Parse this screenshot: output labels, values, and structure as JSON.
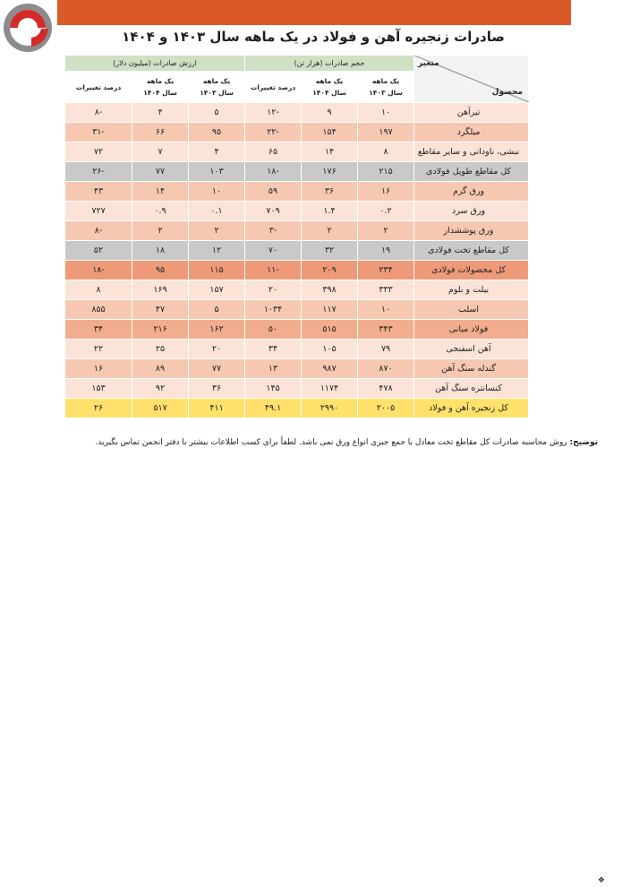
{
  "title": "صادرات زنجیره آهن و فولاد در یک ماهه سال ۱۴۰۳ و ۱۴۰۴",
  "table": {
    "corner_top": "متغیر",
    "corner_bottom": "محصول",
    "group_volume": "حجم صادرات (هزار تن)",
    "group_value": "ارزش صادرات (میلیون دلار)",
    "col_1403": "یک ماهه\nسال ۱۴۰۳",
    "col_1404": "یک ماهه\nسال ۱۴۰۴",
    "col_change": "درصد تغییرات",
    "rows": [
      {
        "name": "تیرآهن",
        "v1403": "۱۰",
        "v1404": "۹",
        "vch": "-۱۲",
        "d1403": "۵",
        "d1404": "۴",
        "dch": "-۸",
        "style": "r-light"
      },
      {
        "name": "میلگرد",
        "v1403": "۱۹۷",
        "v1404": "۱۵۴",
        "vch": "-۲۲",
        "d1403": "۹۵",
        "d1404": "۶۶",
        "dch": "-۳۱",
        "style": "r-mid"
      },
      {
        "name": "نبشی، ناودانی و سایر مقاطع",
        "v1403": "۸",
        "v1404": "۱۴",
        "vch": "۶۵",
        "d1403": "۴",
        "d1404": "۷",
        "dch": "۷۲",
        "style": "r-light"
      },
      {
        "name": "کل مقاطع طویل فولادی",
        "v1403": "۲۱۵",
        "v1404": "۱۷۶",
        "vch": "-۱۸",
        "d1403": "۱۰۳",
        "d1404": "۷۷",
        "dch": "-۲۶",
        "style": "r-gray"
      },
      {
        "name": "ورق گرم",
        "v1403": "۱۶",
        "v1404": "۳۶",
        "vch": "۵۹",
        "d1403": "۱۰",
        "d1404": "۱۴",
        "dch": "۴۳",
        "style": "r-mid"
      },
      {
        "name": "ورق سرد",
        "v1403": "۰.۲",
        "v1404": "۱.۴",
        "vch": "۷۰۹",
        "d1403": "۰.۱",
        "d1404": "۰.۹",
        "dch": "۷۲۷",
        "style": "r-light"
      },
      {
        "name": "ورق پوششدار",
        "v1403": "۲",
        "v1404": "۲",
        "vch": "-۳",
        "d1403": "۲",
        "d1404": "۲",
        "dch": "-۸",
        "style": "r-mid"
      },
      {
        "name": "کل مقاطع تخت فولادی",
        "v1403": "۱۹",
        "v1404": "۳۲",
        "vch": "۷۰",
        "d1403": "۱۲",
        "d1404": "۱۸",
        "dch": "۵۲",
        "style": "r-gray"
      },
      {
        "name": "کل محصولات فولادی",
        "v1403": "۲۳۴",
        "v1404": "۲۰۹",
        "vch": "-۱۱",
        "d1403": "۱۱۵",
        "d1404": "۹۵",
        "dch": "-۱۸",
        "style": "r-orange"
      },
      {
        "name": "بیلت و بلوم",
        "v1403": "۳۳۳",
        "v1404": "۳۹۸",
        "vch": "۲۰",
        "d1403": "۱۵۷",
        "d1404": "۱۶۹",
        "dch": "۸",
        "style": "r-light"
      },
      {
        "name": "اسلب",
        "v1403": "۱۰",
        "v1404": "۱۱۷",
        "vch": "۱۰۳۴",
        "d1403": "۵",
        "d1404": "۴۷",
        "dch": "۸۵۵",
        "style": "r-mid"
      },
      {
        "name": "فولاد میانی",
        "v1403": "۳۴۳",
        "v1404": "۵۱۵",
        "vch": "۵۰",
        "d1403": "۱۶۲",
        "d1404": "۲۱۶",
        "dch": "۳۴",
        "style": "r-orange2"
      },
      {
        "name": "آهن اسفنجی",
        "v1403": "۷۹",
        "v1404": "۱۰۵",
        "vch": "۳۴",
        "d1403": "۲۰",
        "d1404": "۲۵",
        "dch": "۲۲",
        "style": "r-light"
      },
      {
        "name": "گندله سنگ آهن",
        "v1403": "۸۷۰",
        "v1404": "۹۸۷",
        "vch": "۱۳",
        "d1403": "۷۷",
        "d1404": "۸۹",
        "dch": "۱۶",
        "style": "r-mid"
      },
      {
        "name": "کنسانتره سنگ آهن",
        "v1403": "۴۷۸",
        "v1404": "۱۱۷۴",
        "vch": "۱۴۵",
        "d1403": "۳۶",
        "d1404": "۹۲",
        "dch": "۱۵۳",
        "style": "r-light"
      },
      {
        "name": "کل زنجیره آهن و فولاد",
        "v1403": "۲۰۰۵",
        "v1404": "۲۹۹۰",
        "vch": "۴۹.۱",
        "d1403": "۴۱۱",
        "d1404": "۵۱۷",
        "dch": "۲۶",
        "style": "r-yellow"
      }
    ]
  },
  "footnote": {
    "label": "توضیح:",
    "text": " روش محاسبه صادرات کل مقاطع تخت معادل با جمع جبری انواع ورق نمی باشد. لطفاً برای کسب اطلاعات بیشتر با دفتر انجمن تماس بگیرید."
  },
  "colors": {
    "banner": "#d95a26",
    "logo_red": "#d42a2a",
    "logo_gray": "#8c8c8c"
  }
}
